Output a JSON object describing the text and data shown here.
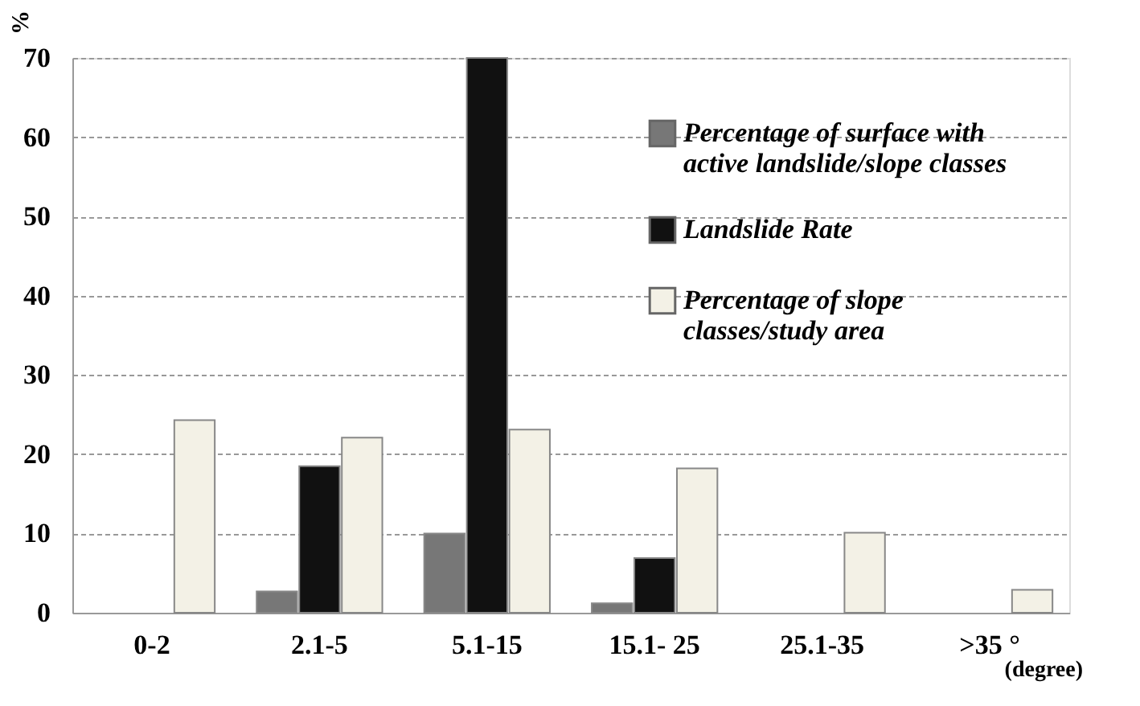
{
  "chart_data": {
    "type": "bar",
    "ylabel": "%",
    "xlabel": "(degree)",
    "categories": [
      "0-2",
      "2.1-5",
      "5.1-15",
      "15.1- 25",
      "25.1-35",
      ">35 °"
    ],
    "series": [
      {
        "name": "Percentage of surface with active landslide/slope classes",
        "color": "#777777",
        "values": [
          0,
          2.7,
          10,
          1.2,
          0,
          0
        ]
      },
      {
        "name": "Landslide Rate",
        "color": "#111111",
        "values": [
          0,
          18.5,
          70,
          6.9,
          0,
          0
        ]
      },
      {
        "name": "Percentage of slope classes/study area",
        "color": "#f3f1e6",
        "values": [
          24.3,
          22.1,
          23.1,
          18.2,
          10.1,
          2.9
        ]
      }
    ],
    "ylim": [
      0,
      70
    ],
    "yticks": [
      0,
      10,
      20,
      30,
      40,
      50,
      60,
      70
    ],
    "grid": "y",
    "legend": "top right"
  }
}
